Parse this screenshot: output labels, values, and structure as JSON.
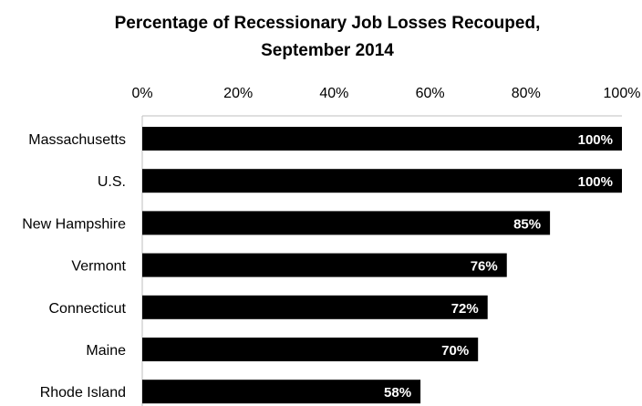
{
  "chart_data": {
    "type": "bar",
    "orientation": "horizontal",
    "title": "Percentage of Recessionary Job Losses Recouped, September 2014",
    "title_lines": [
      "Percentage of Recessionary Job Losses Recouped,",
      "September 2014"
    ],
    "categories": [
      "Massachusetts",
      "U.S.",
      "New Hampshire",
      "Vermont",
      "Connecticut",
      "Maine",
      "Rhode Island"
    ],
    "values": [
      100,
      100,
      85,
      76,
      72,
      70,
      58
    ],
    "data_labels": [
      "100%",
      "100%",
      "85%",
      "76%",
      "72%",
      "70%",
      "58%"
    ],
    "xlim": [
      0,
      100
    ],
    "x_ticks": [
      0,
      20,
      40,
      60,
      80,
      100
    ],
    "x_tick_labels": [
      "0%",
      "20%",
      "40%",
      "60%",
      "80%",
      "100%"
    ],
    "x_axis_position": "top",
    "xlabel": "",
    "ylabel": "",
    "grid": false,
    "legend": "none",
    "bar_color": "#000000",
    "data_label_color": "#ffffff"
  }
}
